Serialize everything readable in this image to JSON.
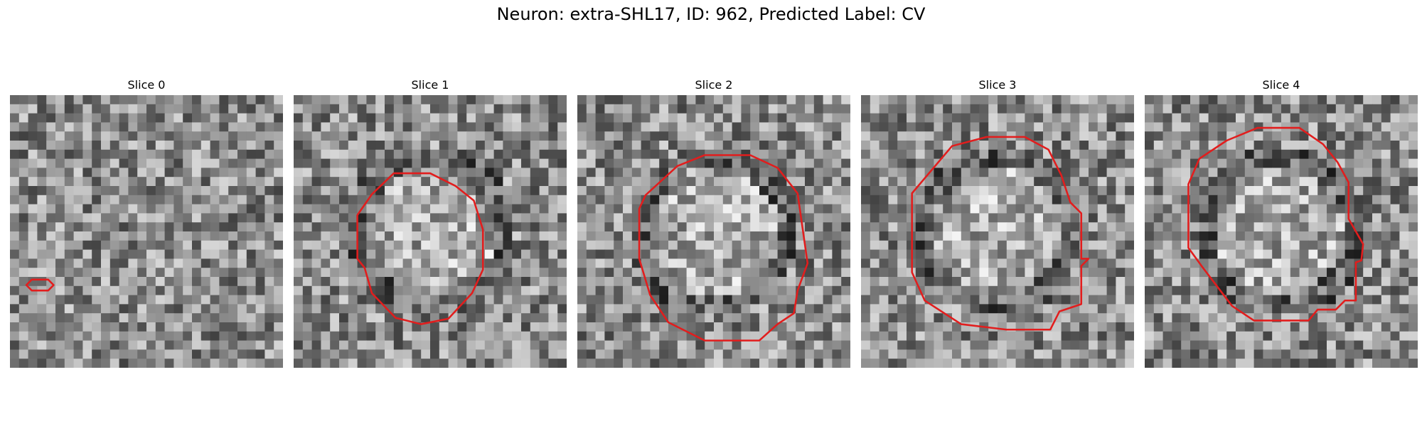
{
  "figure": {
    "title": "Neuron: extra-SHL17, ID: 962, Predicted Label: CV"
  },
  "colors": {
    "contour": "#e21d1d",
    "background": "#ffffff"
  },
  "panels": [
    {
      "title": "Slice 0",
      "seed": 11,
      "contour": [
        [
          18,
          209
        ],
        [
          24,
          203
        ],
        [
          42,
          203
        ],
        [
          48,
          209
        ],
        [
          42,
          215
        ],
        [
          24,
          215
        ]
      ]
    },
    {
      "title": "Slice 1",
      "seed": 23,
      "contour": [
        [
          86,
          109
        ],
        [
          110,
          86
        ],
        [
          150,
          86
        ],
        [
          178,
          100
        ],
        [
          198,
          116
        ],
        [
          208,
          148
        ],
        [
          208,
          192
        ],
        [
          196,
          218
        ],
        [
          170,
          246
        ],
        [
          140,
          252
        ],
        [
          112,
          245
        ],
        [
          86,
          218
        ],
        [
          78,
          190
        ],
        [
          70,
          180
        ],
        [
          70,
          132
        ]
      ]
    },
    {
      "title": "Slice 2",
      "seed": 37,
      "contour": [
        [
          68,
          125
        ],
        [
          75,
          110
        ],
        [
          110,
          78
        ],
        [
          140,
          66
        ],
        [
          190,
          66
        ],
        [
          220,
          80
        ],
        [
          242,
          108
        ],
        [
          248,
          150
        ],
        [
          253,
          185
        ],
        [
          242,
          215
        ],
        [
          238,
          240
        ],
        [
          220,
          252
        ],
        [
          200,
          270
        ],
        [
          175,
          270
        ],
        [
          140,
          270
        ],
        [
          100,
          250
        ],
        [
          80,
          220
        ],
        [
          68,
          180
        ]
      ]
    },
    {
      "title": "Slice 3",
      "seed": 51,
      "contour": [
        [
          56,
          108
        ],
        [
          100,
          56
        ],
        [
          138,
          46
        ],
        [
          180,
          46
        ],
        [
          206,
          60
        ],
        [
          220,
          88
        ],
        [
          230,
          118
        ],
        [
          242,
          130
        ],
        [
          242,
          180
        ],
        [
          250,
          180
        ],
        [
          242,
          188
        ],
        [
          242,
          230
        ],
        [
          218,
          238
        ],
        [
          208,
          258
        ],
        [
          160,
          258
        ],
        [
          110,
          252
        ],
        [
          70,
          226
        ],
        [
          56,
          195
        ]
      ]
    },
    {
      "title": "Slice 4",
      "seed": 67,
      "contour": [
        [
          48,
          98
        ],
        [
          60,
          70
        ],
        [
          90,
          50
        ],
        [
          124,
          36
        ],
        [
          170,
          36
        ],
        [
          196,
          54
        ],
        [
          212,
          74
        ],
        [
          224,
          96
        ],
        [
          224,
          136
        ],
        [
          240,
          164
        ],
        [
          238,
          182
        ],
        [
          232,
          184
        ],
        [
          232,
          226
        ],
        [
          220,
          226
        ],
        [
          210,
          236
        ],
        [
          190,
          236
        ],
        [
          180,
          248
        ],
        [
          150,
          248
        ],
        [
          120,
          248
        ],
        [
          96,
          232
        ],
        [
          64,
          190
        ],
        [
          48,
          168
        ]
      ]
    }
  ]
}
